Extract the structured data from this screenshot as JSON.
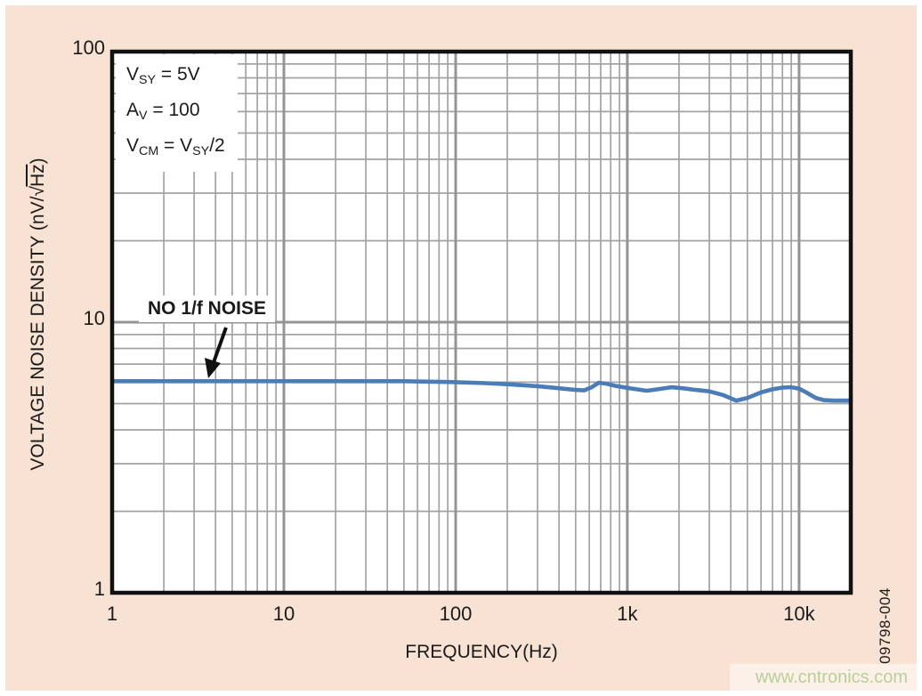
{
  "page": {
    "background_color": "#f8e2d3",
    "figure_code": "09798-004",
    "watermark": {
      "text": "www.cntronics.com",
      "color": "#b9cf97"
    }
  },
  "chart_data": {
    "type": "line",
    "title": "",
    "xlabel": "FREQUENCY(Hz)",
    "ylabel": "VOLTAGE NOISE DENSITY (nV/√Hz)",
    "ylabel_parts": {
      "prefix": "VOLTAGE NOISE DENSITY (nV/",
      "radical": "√",
      "radicand": "Hz",
      "suffix": ")"
    },
    "xscale": "log",
    "yscale": "log",
    "xlim": [
      1,
      20000
    ],
    "ylim": [
      1,
      100
    ],
    "grid": "full log grid, major and minor lines",
    "legend": "none",
    "x_ticks": [
      {
        "value": 1,
        "label": "1"
      },
      {
        "value": 10,
        "label": "10"
      },
      {
        "value": 100,
        "label": "100"
      },
      {
        "value": 1000,
        "label": "1k"
      },
      {
        "value": 10000,
        "label": "10k"
      }
    ],
    "y_ticks": [
      {
        "value": 1,
        "label": "1"
      },
      {
        "value": 10,
        "label": "10"
      },
      {
        "value": 100,
        "label": "100"
      }
    ],
    "grid_minor_color": "#a3a3a3",
    "grid_major_color": "#949494",
    "frame_color": "#111111",
    "series": [
      {
        "color": "#4a7db8",
        "points": [
          [
            1,
            6.05
          ],
          [
            2,
            6.05
          ],
          [
            3,
            6.05
          ],
          [
            5,
            6.05
          ],
          [
            7,
            6.05
          ],
          [
            10,
            6.05
          ],
          [
            15,
            6.05
          ],
          [
            20,
            6.05
          ],
          [
            30,
            6.05
          ],
          [
            50,
            6.05
          ],
          [
            70,
            6.03
          ],
          [
            100,
            6.0
          ],
          [
            150,
            5.95
          ],
          [
            200,
            5.9
          ],
          [
            300,
            5.8
          ],
          [
            400,
            5.7
          ],
          [
            500,
            5.62
          ],
          [
            560,
            5.6
          ],
          [
            620,
            5.75
          ],
          [
            680,
            5.97
          ],
          [
            750,
            5.93
          ],
          [
            850,
            5.82
          ],
          [
            1000,
            5.72
          ],
          [
            1200,
            5.62
          ],
          [
            1300,
            5.58
          ],
          [
            1500,
            5.65
          ],
          [
            1800,
            5.75
          ],
          [
            2100,
            5.7
          ],
          [
            2500,
            5.62
          ],
          [
            3000,
            5.55
          ],
          [
            3600,
            5.38
          ],
          [
            4300,
            5.13
          ],
          [
            5000,
            5.25
          ],
          [
            6000,
            5.5
          ],
          [
            7000,
            5.65
          ],
          [
            8000,
            5.73
          ],
          [
            9000,
            5.75
          ],
          [
            10000,
            5.68
          ],
          [
            11000,
            5.5
          ],
          [
            12500,
            5.25
          ],
          [
            14000,
            5.15
          ],
          [
            16000,
            5.13
          ],
          [
            20000,
            5.13
          ]
        ]
      }
    ],
    "annotations": {
      "conditions": [
        {
          "text": "VSY = 5V",
          "segments": [
            {
              "t": "V"
            },
            {
              "t": "SY",
              "sub": true
            },
            {
              "t": " = 5V"
            }
          ]
        },
        {
          "text": "AV = 100",
          "segments": [
            {
              "t": "A"
            },
            {
              "t": "V",
              "sub": true
            },
            {
              "t": " = 100"
            }
          ]
        },
        {
          "text": "VCM = VSY/2",
          "segments": [
            {
              "t": "V"
            },
            {
              "t": "CM",
              "sub": true
            },
            {
              "t": " = V"
            },
            {
              "t": "SY",
              "sub": true
            },
            {
              "t": "/2"
            }
          ]
        }
      ],
      "callout_label": "NO 1/f NOISE"
    }
  }
}
